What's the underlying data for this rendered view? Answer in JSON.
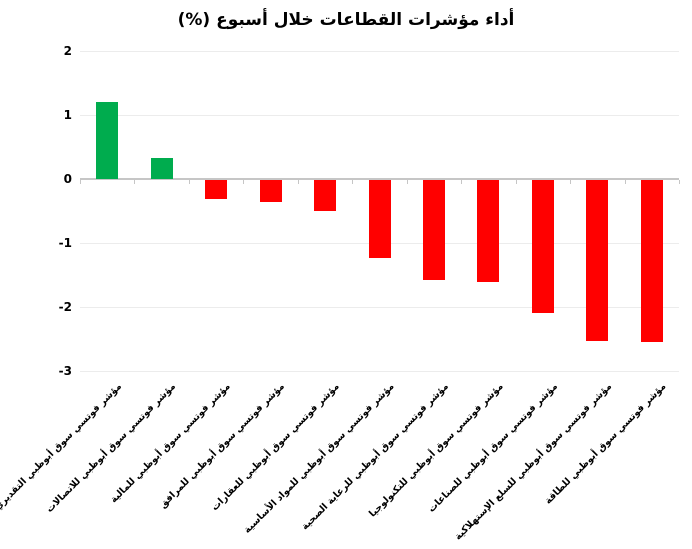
{
  "chart_data": {
    "type": "bar",
    "title": "أداء مؤشرات القطاعات خلال أسبوع (%)",
    "categories": [
      "مؤشر فوتسي سوق أبوظبي التقديري للمستهلك",
      "مؤشر فوتسي سوق أبوظبي للاتصالات",
      "مؤشر فوتسي سوق أبوظبي للمالية",
      "مؤشر فوتسي سوق أبوظبي للمرافق",
      "مؤشر فوتسي سوق أبوظبي للعقارات",
      "مؤشر فوتسي سوق أبوظبي للمواد الأساسية",
      "مؤشر فوتسي سوق أبوظبي للرعاية الصحية",
      "مؤشر فوتسي سوق أبوظبي للتكنولوجيا",
      "مؤشر فوتسي سوق أبوظبي للصناعات",
      "مؤشر فوتسي سوق أبوظبي للسلع الإستهلاكية",
      "مؤشر فوتسي سوق أبوظبي للطاقة"
    ],
    "values": [
      1.2,
      0.33,
      -0.29,
      -0.35,
      -0.48,
      -1.22,
      -1.57,
      -1.59,
      -2.08,
      -2.51,
      -2.53
    ],
    "xlabel": "",
    "ylabel": "",
    "ylim": [
      -3,
      2
    ],
    "yticks": [
      2,
      1,
      0,
      -1,
      -2,
      -3
    ],
    "grid": true,
    "legend": "none",
    "positive_color": "#00AC4E",
    "negative_color": "#FF0000",
    "gridline_color": "#ECECEC",
    "axis_color": "#C6C6C6",
    "text_color": "#000000",
    "background_color": "#FFFFFF"
  }
}
